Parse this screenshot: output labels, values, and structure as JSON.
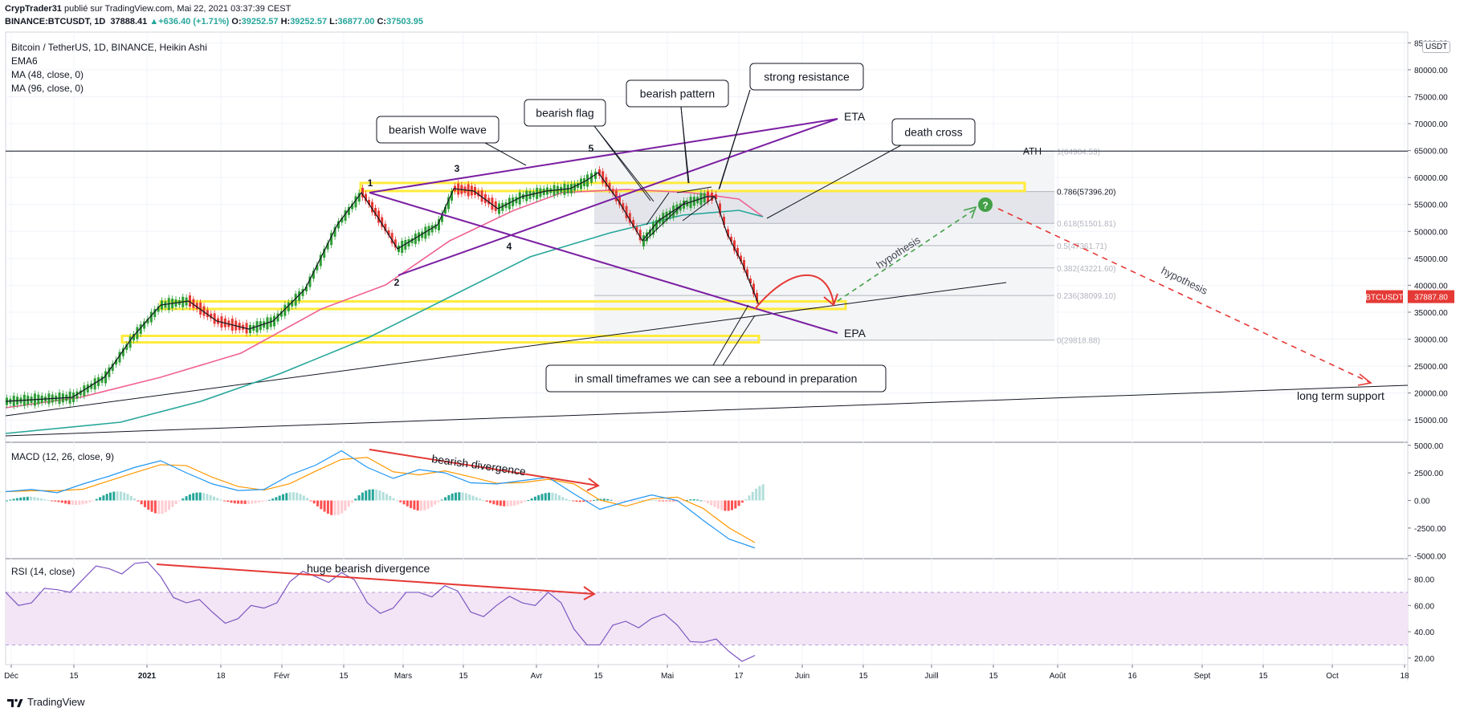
{
  "header": {
    "publisher": "CrypTrader31",
    "published_text": " publié sur TradingView.com, Mai 22, 2021 03:37:39 CEST",
    "symbol": "BINANCE:BTCUSDT, 1D",
    "last": "37888.41",
    "change": "+636.40 (+1.71%)",
    "open_label": "O:",
    "open": "39252.57",
    "high_label": "H:",
    "high": "39252.57",
    "low_label": "L:",
    "low": "36877.00",
    "close_label": "C:",
    "close": "37503.95"
  },
  "legends": {
    "main": "Bitcoin / TetherUS, 1D, BINANCE, Heikin Ashi",
    "ema": "EMA6",
    "ma48": "MA (48, close, 0)",
    "ma96": "MA (96, close, 0)",
    "macd": "MACD (12, 26, close, 9)",
    "rsi": "RSI (14, close)"
  },
  "price_badge": {
    "symbol": "BTCUSDT",
    "value": "37887.80"
  },
  "currency_button": "USDT",
  "footer": {
    "brand": "TradingView"
  },
  "colors": {
    "up": "#26a69a",
    "candle_up": "#2e9e35",
    "candle_down": "#e53935",
    "ema6": "#131722",
    "ma48": "#f06292",
    "ma96": "#26a69a",
    "wolfe": "#7b1fa2",
    "zone": "#ffeb3b",
    "arrow": "#e53935",
    "hypothesis_up": "#43a047",
    "hypothesis_down": "#e53935",
    "macd": "#2196f3",
    "signal": "#ff9800",
    "rsi": "#7e57c2",
    "rsi_band": "#e1bee7"
  },
  "chart_data": {
    "type": "candlestick",
    "price_axis": {
      "ticks": [
        "85000.00",
        "80000.00",
        "75000.00",
        "70000.00",
        "65000.00",
        "60000.00",
        "55000.00",
        "50000.00",
        "45000.00",
        "40000.00",
        "35000.00",
        "30000.00",
        "25000.00",
        "20000.00",
        "15000.00"
      ],
      "range": [
        11000,
        87000
      ],
      "scale": "linear"
    },
    "x_axis": {
      "ticks": [
        "Déc",
        "15",
        "2021",
        "18",
        "Févr",
        "15",
        "Mars",
        "15",
        "Avr",
        "15",
        "Mai",
        "17",
        "Juin",
        "15",
        "Juill",
        "15",
        "Août",
        "16",
        "Sept",
        "15",
        "Oct",
        "18"
      ]
    },
    "fibonacci": [
      {
        "label": "ATH",
        "level": "1",
        "price": "64904.53"
      },
      {
        "level": "0.786",
        "price": "57396.20"
      },
      {
        "level": "0.618",
        "price": "51501.81"
      },
      {
        "level": "0.5",
        "price": "47361.71"
      },
      {
        "level": "0.382",
        "price": "43221.60"
      },
      {
        "level": "0.236",
        "price": "38099.10"
      },
      {
        "level": "0",
        "price": "29818.88"
      }
    ],
    "wolfe_points": [
      "1",
      "2",
      "3",
      "4",
      "5"
    ],
    "annotations": {
      "wolfe": "bearish Wolfe wave",
      "flag": "bearish flag",
      "pattern": "bearish pattern",
      "resistance": "strong resistance",
      "death_cross": "death cross",
      "eta": "ETA",
      "epa": "EPA",
      "rebound": "in small timeframes we can see a rebound in preparation",
      "hypothesis_up": "hypothesis",
      "hypothesis_down": "hypothesis",
      "long_term": "long term support",
      "macd_div": "bearish divergence",
      "rsi_div": "huge bearish divergence",
      "question": "?"
    },
    "macd_axis": {
      "ticks": [
        "5000.00",
        "2500.00",
        "0.00",
        "-2500.00",
        "-5000.00"
      ],
      "range": [
        -5200,
        5200
      ]
    },
    "rsi_axis": {
      "ticks": [
        "80.00",
        "60.00",
        "40.00",
        "20.00"
      ],
      "range": [
        15,
        95
      ],
      "band": [
        30,
        70
      ]
    },
    "series": [
      {
        "name": "Heikin Ashi close",
        "unit": "USDT",
        "x": [
          "Déc 1",
          "Déc 8",
          "Déc 15",
          "Déc 22",
          "Déc 29",
          "Jan 5",
          "Jan 8",
          "Jan 12",
          "Jan 18",
          "Jan 26",
          "Févr 1",
          "Févr 8",
          "Févr 15",
          "Févr 21",
          "Févr 28",
          "Mars 6",
          "Mars 13",
          "Mars 20",
          "Mars 25",
          "Avr 2",
          "Avr 9",
          "Avr 14",
          "Avr 20",
          "Avr 25",
          "Mai 1",
          "Mai 7",
          "Mai 12",
          "Mai 16",
          "Mai 19",
          "Mai 21"
        ],
        "values": [
          18500,
          19000,
          19500,
          23000,
          27500,
          34000,
          40000,
          36000,
          36500,
          32000,
          33500,
          44000,
          47500,
          57000,
          46000,
          49000,
          58000,
          57500,
          53000,
          58500,
          59000,
          63000,
          55000,
          50000,
          56000,
          58000,
          55000,
          47000,
          40000,
          37888
        ]
      },
      {
        "name": "MACD",
        "values": [
          800,
          1000,
          700,
          1500,
          2200,
          3000,
          3600,
          2500,
          1500,
          900,
          1000,
          2300,
          3200,
          4500,
          3000,
          2000,
          2800,
          2500,
          1600,
          1500,
          1800,
          2100,
          600,
          -800,
          -100,
          500,
          0,
          -1800,
          -3500,
          -4300
        ]
      },
      {
        "name": "RSI",
        "values": [
          70,
          62,
          72,
          80,
          88,
          92,
          82,
          62,
          55,
          50,
          58,
          78,
          82,
          85,
          62,
          58,
          70,
          75,
          55,
          60,
          62,
          70,
          42,
          30,
          48,
          50,
          45,
          32,
          25,
          22
        ]
      }
    ]
  }
}
